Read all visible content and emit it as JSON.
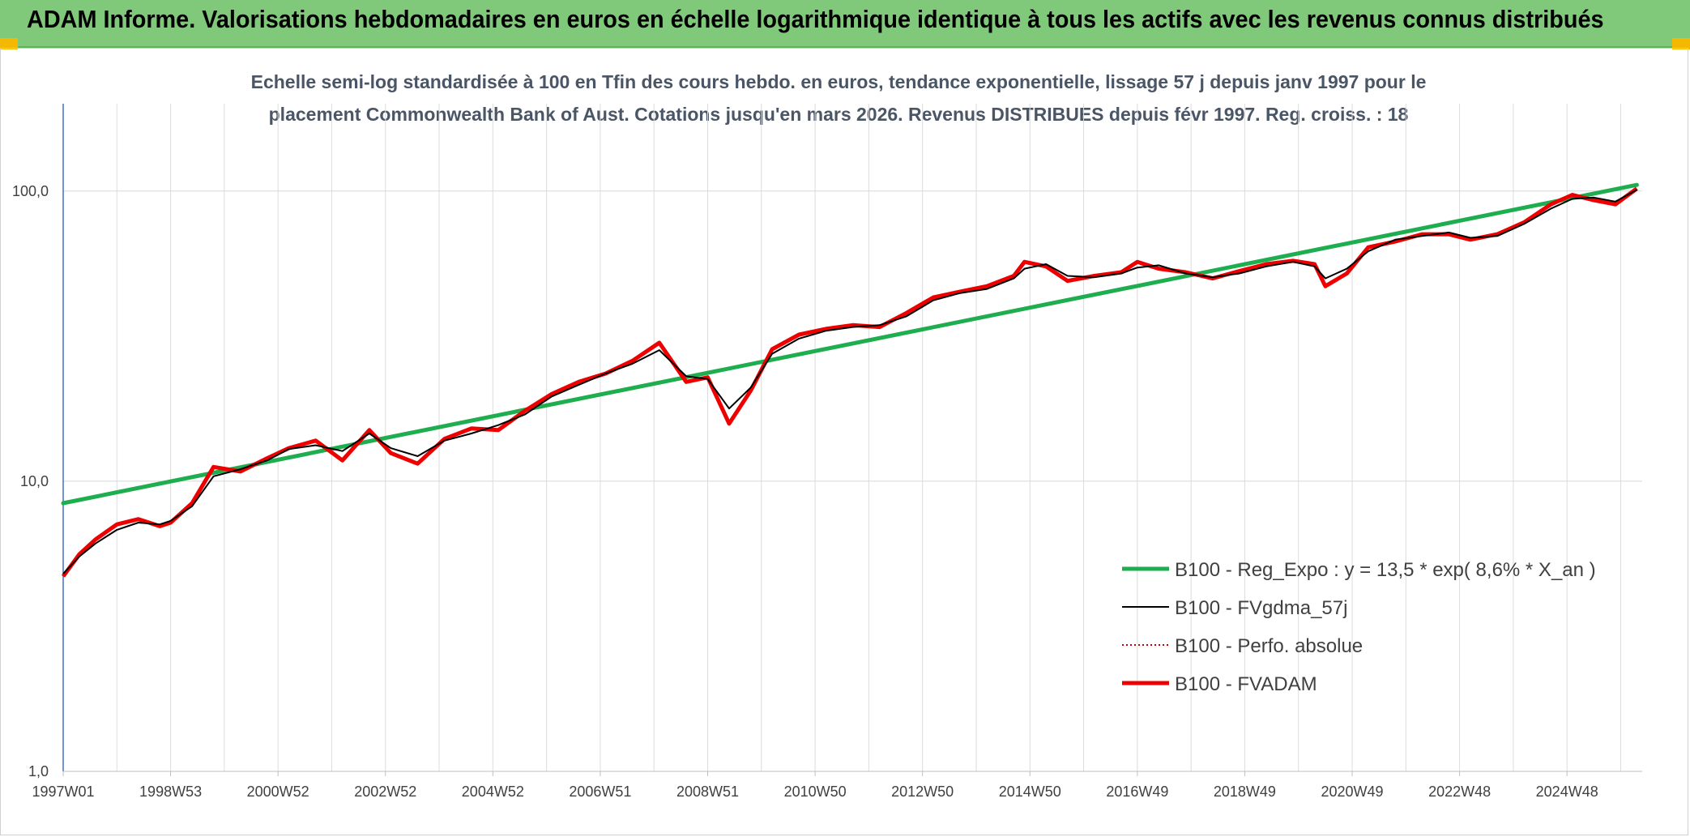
{
  "header": {
    "title": "ADAM Informe. Valorisations hebdomadaires en euros en échelle logarithmique identique à tous les actifs avec les revenus connus distribués"
  },
  "colors": {
    "header_bg": "#80c97b",
    "accent_corner": "#f5b800",
    "regression": "#1fae4f",
    "smoothed": "#000000",
    "perfo": "#cc0000",
    "fvadam": "#ee0000"
  },
  "chart_data": {
    "type": "line",
    "title_line1": "Echelle semi-log standardisée à 100 en Tfin des cours hebdo. en euros, tendance exponentielle, lissage 57 j depuis janv 1997 pour le",
    "title_line2": "placement Commonwealth Bank of Aust. Cotations jusqu'en mars 2026. Revenus DISTRIBUES depuis févr 1997. Reg. croiss. : 18",
    "y_scale": "log",
    "ylim": [
      1,
      200
    ],
    "y_ticks": [
      "1,0",
      "10,0",
      "100,0"
    ],
    "y_tick_values": [
      1,
      10,
      100
    ],
    "xlim": [
      1997.0,
      2026.4
    ],
    "x_tick_labels": [
      "1997W01",
      "1998W53",
      "2000W52",
      "2002W52",
      "2004W52",
      "2006W51",
      "2008W51",
      "2010W50",
      "2012W50",
      "2014W50",
      "2016W49",
      "2018W49",
      "2020W49",
      "2022W48",
      "2024W48"
    ],
    "x_tick_values": [
      1997.0,
      1999.0,
      2001.0,
      2003.0,
      2005.0,
      2007.0,
      2009.0,
      2011.0,
      2013.0,
      2015.0,
      2017.0,
      2019.0,
      2021.0,
      2023.0,
      2025.0
    ],
    "grid": true,
    "legend_position": "bottom-right",
    "series": [
      {
        "name": "B100 - Reg_Expo : y = 13,5 * exp( 8,6% *  X_an )",
        "style": "regression",
        "x": [
          1997.0,
          2026.3
        ],
        "values": [
          8.4,
          105
        ]
      },
      {
        "name": "B100 - FVgdma_57j",
        "style": "smoothed",
        "x": [
          1997.0,
          1997.3,
          1997.6,
          1998.0,
          1998.4,
          1998.8,
          1999.0,
          1999.4,
          1999.8,
          2000.3,
          2000.8,
          2001.2,
          2001.7,
          2002.2,
          2002.7,
          2003.1,
          2003.6,
          2004.1,
          2004.6,
          2005.1,
          2005.6,
          2006.1,
          2006.6,
          2007.1,
          2007.6,
          2008.1,
          2008.6,
          2009.0,
          2009.4,
          2009.8,
          2010.2,
          2010.7,
          2011.2,
          2011.7,
          2012.2,
          2012.7,
          2013.2,
          2013.7,
          2014.2,
          2014.7,
          2014.9,
          2015.3,
          2015.7,
          2016.2,
          2016.7,
          2017.0,
          2017.4,
          2017.9,
          2018.4,
          2018.9,
          2019.4,
          2019.9,
          2020.3,
          2020.5,
          2020.9,
          2021.3,
          2021.8,
          2022.3,
          2022.8,
          2023.2,
          2023.7,
          2024.2,
          2024.7,
          2025.1,
          2025.5,
          2025.9,
          2026.3
        ],
        "values": [
          4.8,
          5.5,
          6.1,
          6.8,
          7.2,
          7.1,
          7.3,
          8.2,
          10.4,
          11.0,
          11.8,
          12.9,
          13.3,
          12.7,
          14.6,
          13.0,
          12.2,
          13.8,
          14.6,
          15.6,
          17.0,
          19.6,
          21.5,
          23.5,
          25.4,
          28.3,
          23.0,
          22.5,
          17.8,
          21.0,
          27.5,
          31.0,
          33.0,
          34.0,
          34.5,
          37.0,
          42.0,
          44.5,
          46.0,
          50.0,
          54.0,
          56.0,
          51.0,
          50.5,
          52.0,
          54.5,
          55.5,
          52.0,
          50.5,
          52.0,
          55.0,
          57.0,
          55.0,
          50.0,
          54.0,
          62.0,
          68.0,
          70.0,
          72.0,
          69.0,
          70.0,
          77.0,
          87.0,
          94.0,
          95.0,
          92.0,
          101.0
        ]
      },
      {
        "name": "B100 - Perfo. absolue",
        "style": "dotted"
      },
      {
        "name": "B100 - FVADAM",
        "style": "fvadam",
        "x": [
          1997.0,
          1997.3,
          1997.6,
          1998.0,
          1998.4,
          1998.8,
          1999.0,
          1999.4,
          1999.8,
          2000.3,
          2000.8,
          2001.2,
          2001.7,
          2002.2,
          2002.7,
          2003.1,
          2003.6,
          2004.1,
          2004.6,
          2005.1,
          2005.6,
          2006.1,
          2006.6,
          2007.1,
          2007.6,
          2008.1,
          2008.6,
          2009.0,
          2009.4,
          2009.8,
          2010.2,
          2010.7,
          2011.2,
          2011.7,
          2012.2,
          2012.7,
          2013.2,
          2013.7,
          2014.2,
          2014.7,
          2014.9,
          2015.3,
          2015.7,
          2016.2,
          2016.7,
          2017.0,
          2017.4,
          2017.9,
          2018.4,
          2018.9,
          2019.4,
          2019.9,
          2020.3,
          2020.5,
          2020.9,
          2021.3,
          2021.8,
          2022.3,
          2022.8,
          2023.2,
          2023.7,
          2024.2,
          2024.7,
          2025.1,
          2025.5,
          2025.9,
          2026.3
        ],
        "values": [
          4.7,
          5.6,
          6.3,
          7.1,
          7.4,
          7.0,
          7.2,
          8.4,
          11.2,
          10.8,
          12.0,
          13.0,
          13.8,
          11.8,
          15.0,
          12.5,
          11.5,
          14.0,
          15.2,
          15.0,
          17.5,
          20.0,
          22.0,
          23.5,
          26.0,
          30.0,
          22.0,
          22.8,
          15.8,
          20.5,
          28.5,
          32.0,
          33.5,
          34.5,
          34.0,
          38.0,
          43.0,
          45.0,
          47.0,
          51.0,
          57.0,
          55.0,
          49.0,
          51.0,
          52.5,
          57.0,
          54.0,
          52.5,
          50.0,
          53.0,
          56.0,
          57.5,
          56.0,
          47.0,
          52.0,
          64.0,
          67.0,
          71.0,
          71.0,
          68.0,
          71.0,
          78.0,
          90.0,
          97.0,
          93.0,
          90.0,
          102.0
        ]
      }
    ]
  }
}
